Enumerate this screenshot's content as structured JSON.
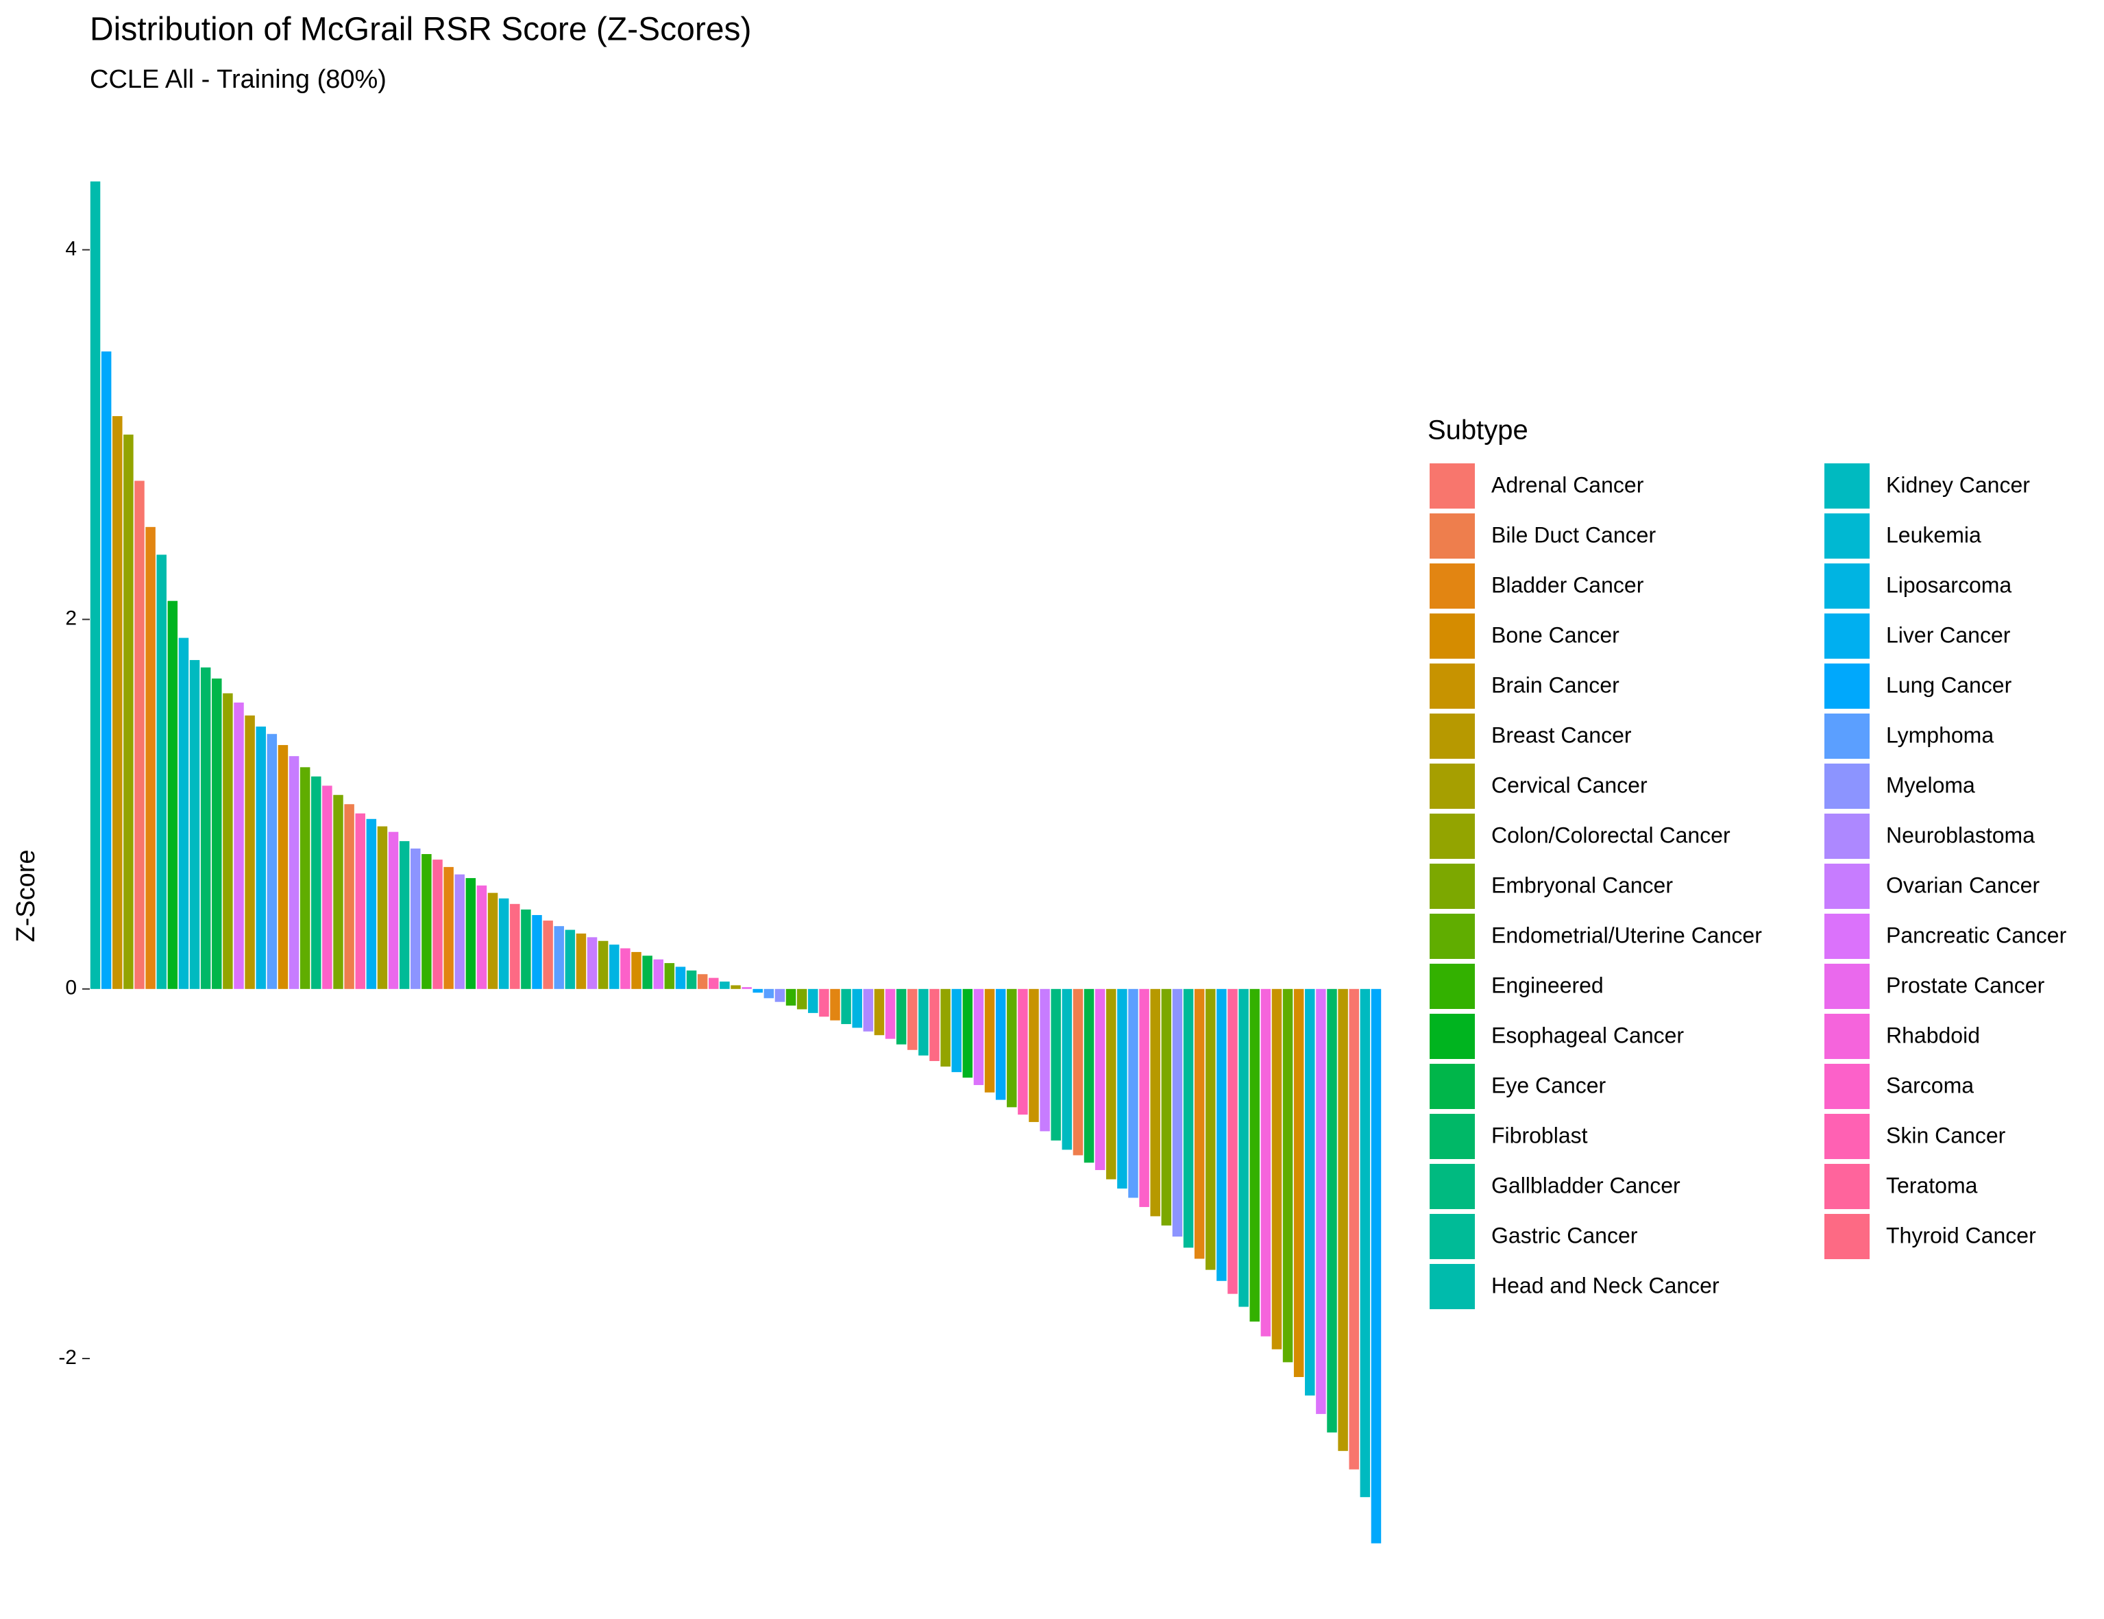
{
  "chart_data": {
    "type": "bar",
    "title": "Distribution of McGrail RSR Score (Z-Scores)",
    "subtitle": "CCLE All - Training (80%)",
    "y_label": "Z-Score",
    "legend_title": "Subtype",
    "ylim": [
      -3.02,
      4.38
    ],
    "yticks": [
      -2,
      0,
      2,
      4
    ],
    "grid": false,
    "series": [
      {
        "name": "Adrenal Cancer",
        "color": "#F8766D"
      },
      {
        "name": "Bile Duct Cancer",
        "color": "#EE7E4D"
      },
      {
        "name": "Bladder Cancer",
        "color": "#E28512"
      },
      {
        "name": "Bone Cancer",
        "color": "#D58C00"
      },
      {
        "name": "Brain Cancer",
        "color": "#C79300"
      },
      {
        "name": "Breast Cancer",
        "color": "#B79900"
      },
      {
        "name": "Cervical Cancer",
        "color": "#A69F00"
      },
      {
        "name": "Colon/Colorectal Cancer",
        "color": "#93A400"
      },
      {
        "name": "Embryonal Cancer",
        "color": "#7CA800"
      },
      {
        "name": "Endometrial/Uterine Cancer",
        "color": "#60AD00"
      },
      {
        "name": "Engineered",
        "color": "#33B100"
      },
      {
        "name": "Esophageal Cancer",
        "color": "#00B41F"
      },
      {
        "name": "Eye Cancer",
        "color": "#00B64A"
      },
      {
        "name": "Fibroblast",
        "color": "#00B867"
      },
      {
        "name": "Gallbladder Cancer",
        "color": "#00BA80"
      },
      {
        "name": "Gastric Cancer",
        "color": "#00BB97"
      },
      {
        "name": "Head and Neck Cancer",
        "color": "#00BBAC"
      },
      {
        "name": "Kidney Cancer",
        "color": "#00BAC0"
      },
      {
        "name": "Leukemia",
        "color": "#00B8D2"
      },
      {
        "name": "Liposarcoma",
        "color": "#00B4E2"
      },
      {
        "name": "Liver Cancer",
        "color": "#00AFF0"
      },
      {
        "name": "Lung Cancer",
        "color": "#00A8FC"
      },
      {
        "name": "Lymphoma",
        "color": "#5B9FFF"
      },
      {
        "name": "Myeloma",
        "color": "#8C94FF"
      },
      {
        "name": "Neuroblastoma",
        "color": "#AD88FF"
      },
      {
        "name": "Ovarian Cancer",
        "color": "#C77CFF"
      },
      {
        "name": "Pancreatic Cancer",
        "color": "#DB72FB"
      },
      {
        "name": "Prostate Cancer",
        "color": "#EA69ED"
      },
      {
        "name": "Rhabdoid",
        "color": "#F564DC"
      },
      {
        "name": "Sarcoma",
        "color": "#FC61C9"
      },
      {
        "name": "Skin Cancer",
        "color": "#FF61B3"
      },
      {
        "name": "Teratoma",
        "color": "#FF649C"
      },
      {
        "name": "Thyroid Cancer",
        "color": "#FD6A84"
      }
    ],
    "values": [
      4.37,
      3.45,
      3.1,
      3.0,
      2.75,
      2.5,
      2.35,
      2.1,
      1.9,
      1.78,
      1.74,
      1.68,
      1.6,
      1.55,
      1.48,
      1.42,
      1.38,
      1.32,
      1.26,
      1.2,
      1.15,
      1.1,
      1.05,
      1.0,
      0.95,
      0.92,
      0.88,
      0.85,
      0.8,
      0.76,
      0.73,
      0.7,
      0.66,
      0.62,
      0.6,
      0.56,
      0.52,
      0.49,
      0.46,
      0.43,
      0.4,
      0.37,
      0.34,
      0.32,
      0.3,
      0.28,
      0.26,
      0.24,
      0.22,
      0.2,
      0.18,
      0.16,
      0.14,
      0.12,
      0.1,
      0.08,
      0.06,
      0.04,
      0.02,
      0.01,
      -0.02,
      -0.05,
      -0.07,
      -0.09,
      -0.11,
      -0.13,
      -0.15,
      -0.17,
      -0.19,
      -0.21,
      -0.23,
      -0.25,
      -0.27,
      -0.3,
      -0.33,
      -0.36,
      -0.39,
      -0.42,
      -0.45,
      -0.48,
      -0.52,
      -0.56,
      -0.6,
      -0.64,
      -0.68,
      -0.72,
      -0.77,
      -0.82,
      -0.87,
      -0.9,
      -0.94,
      -0.98,
      -1.03,
      -1.08,
      -1.13,
      -1.18,
      -1.23,
      -1.28,
      -1.34,
      -1.4,
      -1.46,
      -1.52,
      -1.58,
      -1.65,
      -1.72,
      -1.8,
      -1.88,
      -1.95,
      -2.02,
      -2.1,
      -2.2,
      -2.3,
      -2.4,
      -2.5,
      -2.6,
      -2.75,
      -3.0
    ],
    "bar_subtype": [
      16,
      21,
      4,
      7,
      0,
      2,
      16,
      11,
      18,
      17,
      13,
      12,
      7,
      26,
      5,
      19,
      22,
      3,
      25,
      9,
      14,
      29,
      8,
      1,
      30,
      20,
      6,
      27,
      15,
      23,
      10,
      31,
      2,
      24,
      11,
      28,
      5,
      18,
      32,
      13,
      21,
      0,
      22,
      16,
      4,
      25,
      7,
      19,
      29,
      3,
      12,
      26,
      9,
      20,
      14,
      1,
      30,
      17,
      6,
      27,
      21,
      22,
      23,
      10,
      8,
      18,
      31,
      2,
      15,
      19,
      24,
      5,
      28,
      13,
      0,
      16,
      32,
      7,
      20,
      11,
      26,
      3,
      21,
      9,
      30,
      4,
      25,
      14,
      17,
      1,
      12,
      27,
      6,
      19,
      22,
      29,
      5,
      8,
      23,
      15,
      2,
      7,
      20,
      31,
      16,
      10,
      28,
      4,
      9,
      3,
      18,
      26,
      13,
      5,
      0,
      17,
      21
    ]
  }
}
